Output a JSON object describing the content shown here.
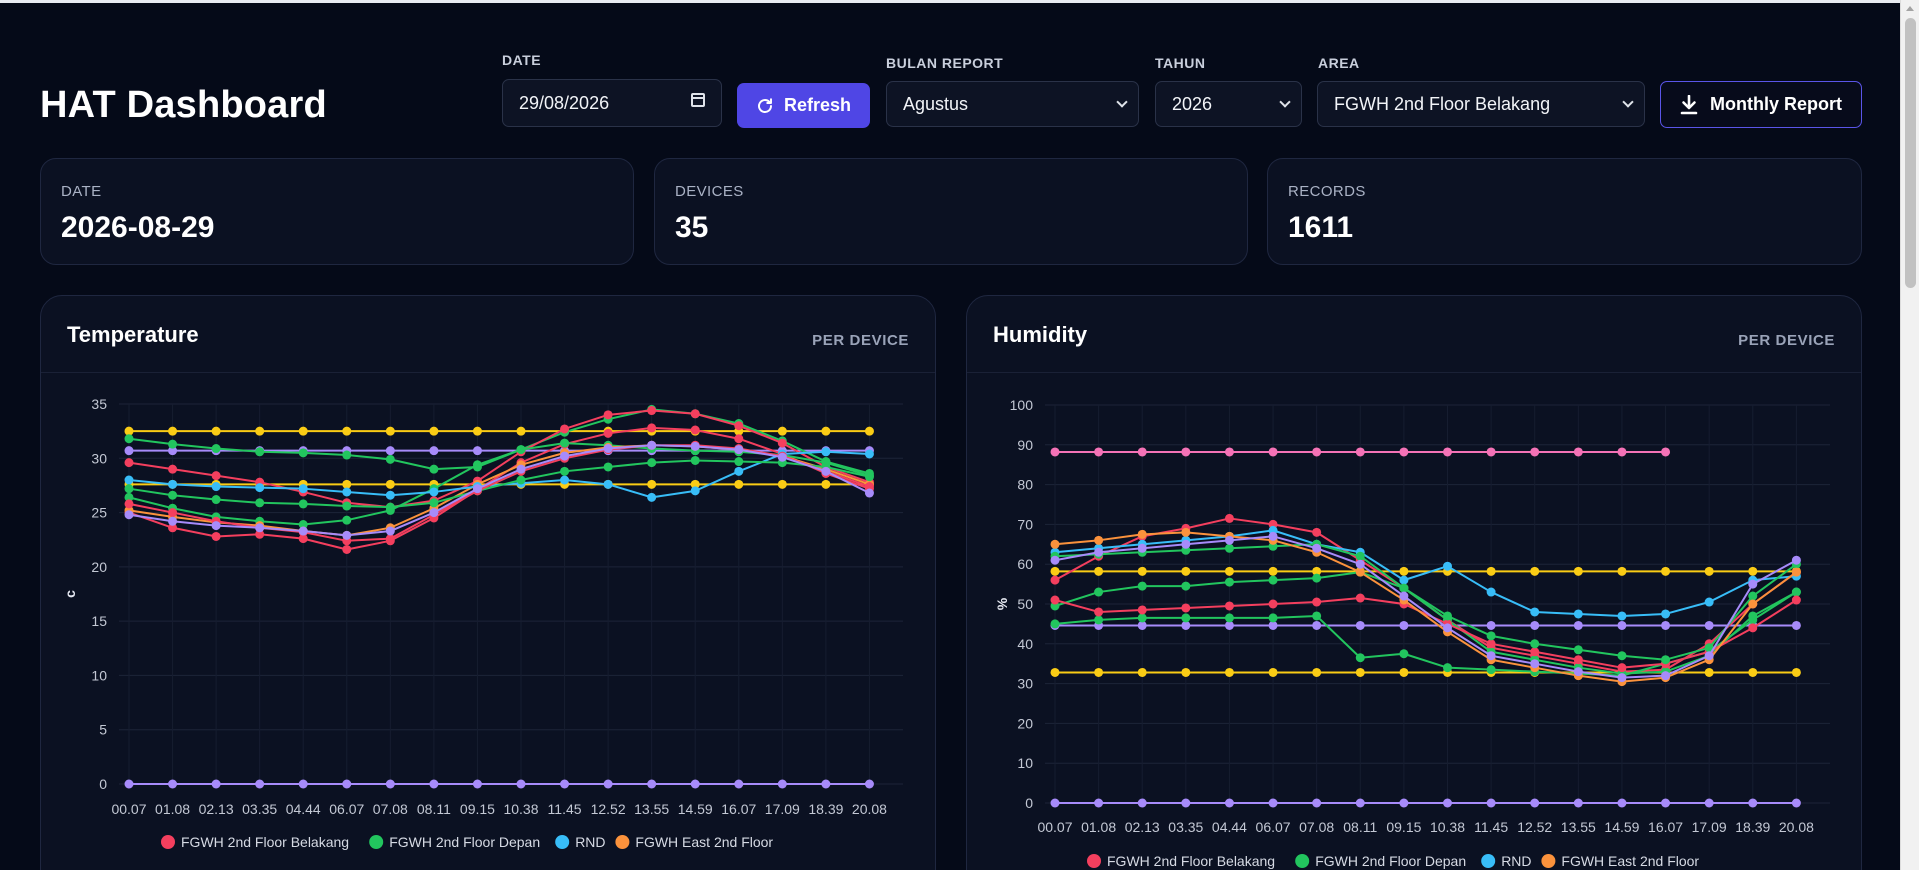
{
  "page": {
    "title": "HAT Dashboard"
  },
  "controls": {
    "date_label": "DATE",
    "date_value": "29/08/2026",
    "refresh_label": "Refresh",
    "bulan_label": "BULAN REPORT",
    "bulan_value": "Agustus",
    "tahun_label": "TAHUN",
    "tahun_value": "2026",
    "area_label": "AREA",
    "area_value": "FGWH 2nd Floor Belakang",
    "monthly_report_label": "Monthly Report"
  },
  "stats": [
    {
      "label": "DATE",
      "value": "2026-08-29"
    },
    {
      "label": "DEVICES",
      "value": "35"
    },
    {
      "label": "RECORDS",
      "value": "1611"
    }
  ],
  "legend": [
    {
      "name": "FGWH 2nd Floor Belakang",
      "color": "#f43f5e"
    },
    {
      "name": "FGWH 2nd Floor Depan",
      "color": "#22c55e"
    },
    {
      "name": "RND",
      "color": "#38bdf8"
    },
    {
      "name": "FGWH East 2nd Floor",
      "color": "#fb923c"
    }
  ],
  "colors": {
    "yellow": "#facc15",
    "purple": "#a78bfa",
    "pink": "#f472b6"
  },
  "chart_data": [
    {
      "type": "line",
      "title": "Temperature",
      "badge": "PER DEVICE",
      "ylabel": "c",
      "ylim": [
        0,
        35
      ],
      "yticks": [
        0,
        5,
        10,
        15,
        20,
        25,
        30,
        35
      ],
      "categories": [
        "00.07",
        "01.08",
        "02.13",
        "03.35",
        "04.44",
        "06.07",
        "07.08",
        "08.11",
        "09.15",
        "10.38",
        "11.45",
        "12.52",
        "13.55",
        "14.59",
        "16.07",
        "17.09",
        "18.39",
        "20.08"
      ],
      "series": [
        {
          "color": "#facc15",
          "values": [
            32.5,
            32.5,
            32.5,
            32.5,
            32.5,
            32.5,
            32.5,
            32.5,
            32.5,
            32.5,
            32.5,
            32.5,
            32.5,
            32.5,
            32.5,
            32.5,
            32.5,
            32.5
          ]
        },
        {
          "color": "#facc15",
          "values": [
            27.6,
            27.6,
            27.6,
            27.6,
            27.6,
            27.6,
            27.6,
            27.6,
            27.6,
            27.6,
            27.6,
            27.6,
            27.6,
            27.6,
            27.6,
            27.6,
            27.6,
            27.6
          ]
        },
        {
          "color": "#a78bfa",
          "values": [
            0,
            0,
            0,
            0,
            0,
            0,
            0,
            0,
            0,
            0,
            0,
            0,
            0,
            0,
            0,
            0,
            0,
            0
          ]
        },
        {
          "color": "#a78bfa",
          "values": [
            30.7,
            30.7,
            30.7,
            30.7,
            30.7,
            30.7,
            30.7,
            30.7,
            30.7,
            30.7,
            30.7,
            30.7,
            30.7,
            30.7,
            30.7,
            30.7,
            30.7,
            30.7
          ]
        },
        {
          "color": "#22c55e",
          "values": [
            31.8,
            31.3,
            30.9,
            30.6,
            30.5,
            30.3,
            29.9,
            29.0,
            29.2,
            30.8,
            32.4,
            33.6,
            34.5,
            34.1,
            33.2,
            31.6,
            29.7,
            28.6
          ]
        },
        {
          "color": "#f43f5e",
          "values": [
            29.6,
            29.0,
            28.4,
            27.8,
            26.9,
            25.9,
            25.5,
            26.1,
            27.9,
            30.6,
            32.7,
            34.0,
            34.4,
            34.1,
            33.0,
            31.4,
            29.2,
            27.8
          ]
        },
        {
          "color": "#f43f5e",
          "values": [
            25.0,
            23.6,
            22.8,
            23.0,
            22.6,
            21.6,
            22.4,
            24.5,
            27.1,
            29.6,
            31.3,
            32.3,
            32.8,
            32.6,
            31.8,
            30.4,
            28.6,
            27.2
          ]
        },
        {
          "color": "#22c55e",
          "values": [
            26.4,
            25.4,
            24.6,
            24.2,
            23.9,
            24.3,
            25.2,
            27.2,
            29.4,
            30.8,
            31.4,
            31.2,
            30.9,
            30.7,
            30.6,
            30.3,
            29.6,
            28.4
          ]
        },
        {
          "color": "#fb923c",
          "values": [
            25.2,
            24.6,
            24.1,
            23.8,
            23.3,
            22.9,
            23.6,
            25.4,
            27.6,
            29.4,
            30.5,
            31.0,
            31.2,
            31.1,
            30.8,
            30.2,
            29.0,
            27.6
          ]
        },
        {
          "color": "#38bdf8",
          "values": [
            28.0,
            27.6,
            27.4,
            27.3,
            27.2,
            26.9,
            26.6,
            26.9,
            27.4,
            27.7,
            28.0,
            27.6,
            26.4,
            27.0,
            28.8,
            30.4,
            30.6,
            30.4
          ]
        },
        {
          "color": "#22c55e",
          "values": [
            27.2,
            26.6,
            26.2,
            25.9,
            25.8,
            25.6,
            25.5,
            25.9,
            27.0,
            28.0,
            28.8,
            29.2,
            29.6,
            29.8,
            29.7,
            29.6,
            29.2,
            28.3
          ]
        },
        {
          "color": "#f43f5e",
          "values": [
            25.8,
            25.0,
            24.2,
            23.6,
            23.2,
            22.4,
            22.6,
            24.8,
            27.0,
            28.8,
            30.0,
            30.8,
            31.2,
            31.2,
            30.9,
            30.2,
            28.8,
            27.4
          ]
        },
        {
          "color": "#a78bfa",
          "values": [
            24.8,
            24.2,
            23.8,
            23.6,
            23.3,
            22.9,
            23.3,
            25.0,
            27.2,
            29.0,
            30.2,
            30.9,
            31.2,
            31.1,
            30.8,
            30.1,
            28.8,
            26.8
          ]
        }
      ]
    },
    {
      "type": "line",
      "title": "Humidity",
      "badge": "PER DEVICE",
      "ylabel": "%",
      "ylim": [
        0,
        100
      ],
      "yticks": [
        0,
        10,
        20,
        30,
        40,
        50,
        60,
        70,
        80,
        90,
        100
      ],
      "categories": [
        "00.07",
        "01.08",
        "02.13",
        "03.35",
        "04.44",
        "06.07",
        "07.08",
        "08.11",
        "09.15",
        "10.38",
        "11.45",
        "12.52",
        "13.55",
        "14.59",
        "16.07",
        "17.09",
        "18.39",
        "20.08"
      ],
      "series": [
        {
          "color": "#f472b6",
          "values": [
            88.2,
            88.2,
            88.2,
            88.2,
            88.2,
            88.2,
            88.2,
            88.2,
            88.2,
            88.2,
            88.2,
            88.2,
            88.2,
            88.2,
            88.2,
            null,
            null,
            null
          ]
        },
        {
          "color": "#facc15",
          "values": [
            58.2,
            58.2,
            58.2,
            58.2,
            58.2,
            58.2,
            58.2,
            58.2,
            58.2,
            58.2,
            58.2,
            58.2,
            58.2,
            58.2,
            58.2,
            58.2,
            58.2,
            58.2
          ]
        },
        {
          "color": "#facc15",
          "values": [
            32.8,
            32.8,
            32.8,
            32.8,
            32.8,
            32.8,
            32.8,
            32.8,
            32.8,
            32.8,
            32.8,
            32.8,
            32.8,
            32.8,
            32.8,
            32.8,
            32.8,
            32.8
          ]
        },
        {
          "color": "#a78bfa",
          "values": [
            0,
            0,
            0,
            0,
            0,
            0,
            0,
            0,
            0,
            0,
            0,
            0,
            0,
            0,
            0,
            0,
            0,
            0
          ]
        },
        {
          "color": "#a78bfa",
          "values": [
            44.6,
            44.6,
            44.6,
            44.6,
            44.6,
            44.6,
            44.6,
            44.6,
            44.6,
            44.6,
            44.6,
            44.6,
            44.6,
            44.6,
            44.6,
            44.6,
            44.6,
            44.6
          ]
        },
        {
          "color": "#f43f5e",
          "values": [
            56.0,
            62.0,
            67.0,
            69.0,
            71.5,
            70.0,
            68.0,
            61.0,
            54.0,
            46.0,
            39.0,
            37.0,
            35.0,
            33.0,
            33.5,
            40.0,
            50.0,
            58.0
          ]
        },
        {
          "color": "#22c55e",
          "values": [
            49.5,
            53.0,
            54.5,
            54.5,
            55.5,
            56.0,
            56.5,
            58.0,
            54.0,
            46.0,
            38.0,
            36.0,
            34.0,
            32.5,
            33.0,
            37.0,
            47.0,
            53.0
          ]
        },
        {
          "color": "#22c55e",
          "values": [
            45.0,
            46.0,
            46.5,
            46.5,
            46.5,
            46.5,
            47.0,
            36.5,
            37.5,
            34.0,
            33.5,
            33.0,
            32.5,
            32.0,
            35.0,
            38.0,
            46.0,
            53.0
          ]
        },
        {
          "color": "#f43f5e",
          "values": [
            51.0,
            48.0,
            48.5,
            49.0,
            49.5,
            50.0,
            50.5,
            51.5,
            50.0,
            45.0,
            40.0,
            38.0,
            36.0,
            34.0,
            35.0,
            38.0,
            44.0,
            51.0
          ]
        },
        {
          "color": "#38bdf8",
          "values": [
            63.0,
            64.0,
            65.0,
            66.0,
            67.0,
            68.5,
            65.0,
            63.0,
            56.0,
            59.5,
            53.0,
            48.0,
            47.5,
            47.0,
            47.5,
            50.5,
            56.0,
            57.0
          ]
        },
        {
          "color": "#22c55e",
          "values": [
            62.0,
            62.5,
            63.0,
            63.5,
            64.0,
            64.5,
            65.0,
            62.0,
            54.0,
            47.0,
            42.0,
            40.0,
            38.5,
            37.0,
            36.0,
            39.0,
            52.0,
            60.0
          ]
        },
        {
          "color": "#fb923c",
          "values": [
            65.0,
            66.0,
            67.5,
            68.0,
            67.0,
            66.0,
            63.0,
            58.0,
            51.0,
            43.0,
            36.0,
            34.0,
            32.0,
            30.5,
            31.5,
            36.0,
            50.0,
            58.0
          ]
        },
        {
          "color": "#a78bfa",
          "values": [
            61.0,
            63.0,
            64.0,
            65.0,
            66.0,
            67.0,
            64.0,
            60.0,
            52.0,
            44.0,
            37.0,
            35.0,
            33.0,
            31.5,
            32.0,
            37.0,
            55.0,
            61.0
          ]
        }
      ]
    }
  ]
}
